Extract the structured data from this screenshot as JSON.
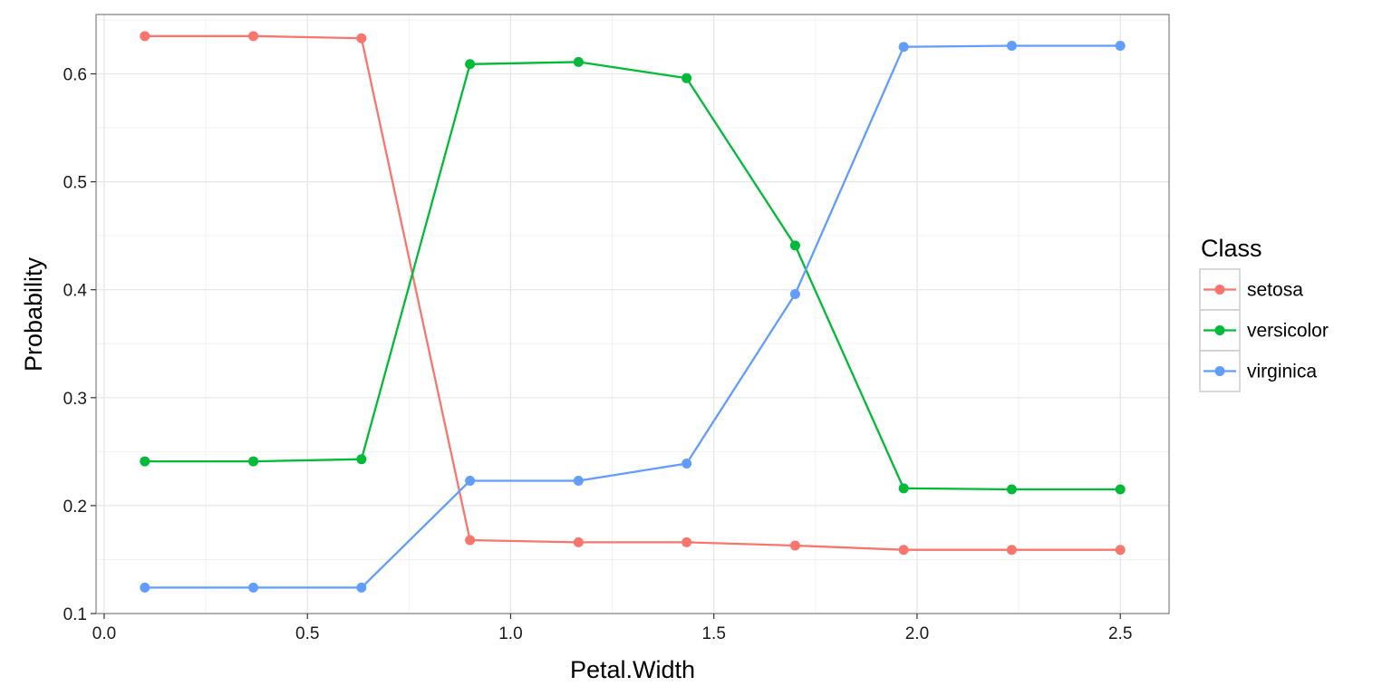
{
  "chart_data": {
    "type": "line",
    "xlabel": "Petal.Width",
    "ylabel": "Probability",
    "xlim": [
      -0.02,
      2.62
    ],
    "ylim": [
      0.1,
      0.655
    ],
    "x_ticks": [
      "0.0",
      "0.5",
      "1.0",
      "1.5",
      "2.0",
      "2.5"
    ],
    "x_tick_values": [
      0,
      0.5,
      1.0,
      1.5,
      2.0,
      2.5
    ],
    "y_ticks": [
      "0.1",
      "0.2",
      "0.3",
      "0.4",
      "0.5",
      "0.6"
    ],
    "y_tick_values": [
      0.1,
      0.2,
      0.3,
      0.4,
      0.5,
      0.6
    ],
    "grid": true,
    "legend": {
      "title": "Class",
      "position": "right"
    },
    "x": [
      0.1,
      0.367,
      0.633,
      0.9,
      1.167,
      1.433,
      1.7,
      1.967,
      2.233,
      2.5
    ],
    "series": [
      {
        "name": "setosa",
        "color": "#F8766D",
        "values": [
          0.635,
          0.635,
          0.633,
          0.168,
          0.166,
          0.166,
          0.163,
          0.159,
          0.159,
          0.159
        ]
      },
      {
        "name": "versicolor",
        "color": "#00BA38",
        "values": [
          0.241,
          0.241,
          0.243,
          0.609,
          0.611,
          0.596,
          0.441,
          0.216,
          0.215,
          0.215
        ]
      },
      {
        "name": "virginica",
        "color": "#619CFF",
        "values": [
          0.124,
          0.124,
          0.124,
          0.223,
          0.223,
          0.239,
          0.396,
          0.625,
          0.626,
          0.626
        ]
      }
    ]
  }
}
